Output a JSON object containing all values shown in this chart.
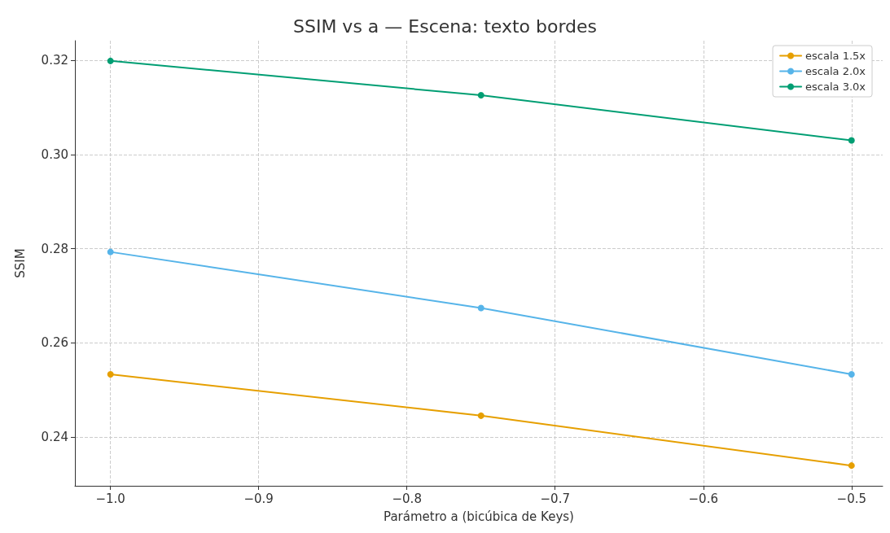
{
  "chart_data": {
    "type": "line",
    "title": "SSIM vs a — Escena: texto bordes",
    "xlabel": "Parámetro a (bicúbica de Keys)",
    "ylabel": "SSIM",
    "x": [
      -1.0,
      -0.75,
      -0.5
    ],
    "series": [
      {
        "name": "escala 1.5x",
        "color": "#e69f00",
        "values": [
          0.2533,
          0.2445,
          0.2339
        ]
      },
      {
        "name": "escala 2.0x",
        "color": "#56b4e9",
        "values": [
          0.2793,
          0.2674,
          0.2533
        ]
      },
      {
        "name": "escala 3.0x",
        "color": "#009e73",
        "values": [
          0.3199,
          0.3126,
          0.303
        ]
      }
    ],
    "xlim": [
      -1.024,
      -0.479
    ],
    "xticks": [
      {
        "value": -1.0,
        "label": "−1.0"
      },
      {
        "value": -0.9,
        "label": "−0.9"
      },
      {
        "value": -0.8,
        "label": "−0.8"
      },
      {
        "value": -0.7,
        "label": "−0.7"
      },
      {
        "value": -0.6,
        "label": "−0.6"
      },
      {
        "value": -0.5,
        "label": "−0.5"
      }
    ],
    "ylim": [
      0.2296,
      0.3242
    ],
    "yticks": [
      {
        "value": 0.24,
        "label": "0.24"
      },
      {
        "value": 0.26,
        "label": "0.26"
      },
      {
        "value": 0.28,
        "label": "0.28"
      },
      {
        "value": 0.3,
        "label": "0.30"
      },
      {
        "value": 0.32,
        "label": "0.32"
      }
    ],
    "grid": true,
    "legend": "top right",
    "marker": "circle",
    "line_style": "solid"
  }
}
